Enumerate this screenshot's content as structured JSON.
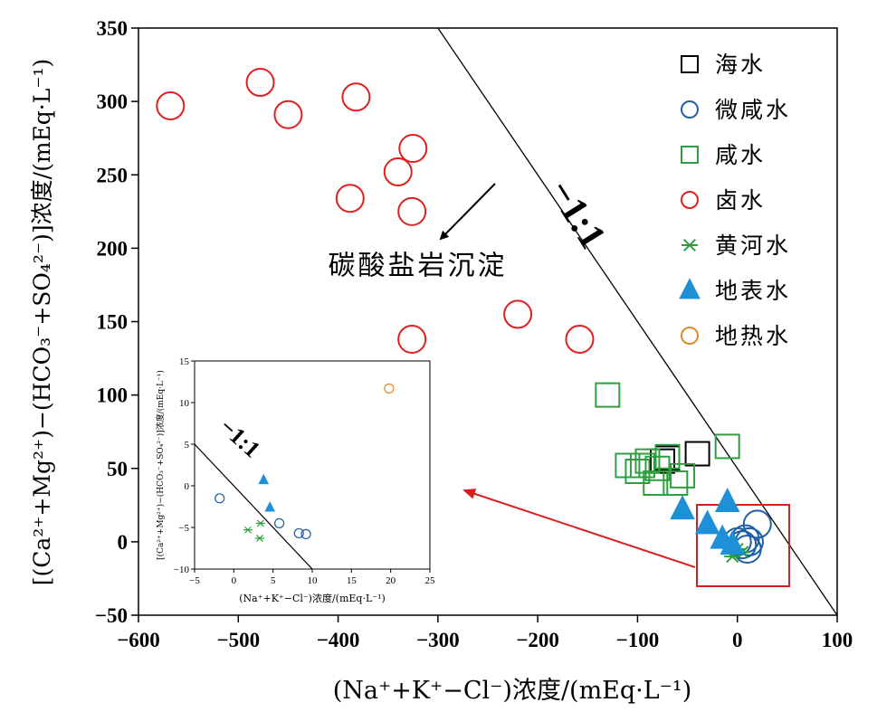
{
  "chart_data": [
    {
      "type": "scatter",
      "xlabel": "(Na⁺+K⁺−Cl⁻)浓度/(mEq·L⁻¹)",
      "ylabel": "[(Ca²⁺+Mg²⁺)−(HCO₃⁻+SO₄²⁻)]浓度/(mEq·L⁻¹)",
      "xlim": [
        -600,
        100
      ],
      "ylim": [
        -50,
        350
      ],
      "xticks": [
        -600,
        -500,
        -400,
        -300,
        -200,
        -100,
        0,
        100
      ],
      "yticks": [
        -50,
        0,
        50,
        100,
        150,
        200,
        250,
        300,
        350
      ],
      "xtick_labels": [
        "−600",
        "−500",
        "−400",
        "−300",
        "−200",
        "−100",
        "0",
        "100"
      ],
      "ytick_labels": [
        "−50",
        "0",
        "50",
        "100",
        "150",
        "200",
        "250",
        "300",
        "350"
      ],
      "grid": false,
      "legend_position": "top-right",
      "reference_line": {
        "label": "−1:1",
        "slope": -1,
        "intercept": 50
      },
      "annotations": [
        {
          "text": "碳酸盐岩沉淀",
          "x": -410,
          "y": 182
        },
        {
          "text": "−1:1",
          "x": -245,
          "y": 247
        }
      ],
      "series": [
        {
          "name": "海水",
          "marker": "square",
          "color": "#000000",
          "points": [
            [
              -75,
              55
            ],
            [
              -70,
              57
            ],
            [
              -40,
              60
            ]
          ]
        },
        {
          "name": "微咸水",
          "marker": "circle",
          "color": "#1f5fa6",
          "points": [
            [
              20,
              12
            ],
            [
              0,
              0
            ],
            [
              8,
              2
            ],
            [
              5,
              -2
            ],
            [
              12,
              0
            ],
            [
              10,
              -5
            ]
          ]
        },
        {
          "name": "咸水",
          "marker": "square",
          "color": "#2e9e3e",
          "points": [
            [
              -130,
              100
            ],
            [
              -10,
              65
            ],
            [
              -110,
              52
            ],
            [
              -95,
              52
            ],
            [
              -100,
              48
            ],
            [
              -90,
              55
            ],
            [
              -80,
              50
            ],
            [
              -70,
              58
            ],
            [
              -55,
              45
            ],
            [
              -82,
              40
            ],
            [
              -62,
              40
            ]
          ]
        },
        {
          "name": "卤水",
          "marker": "circle",
          "color": "#e02020",
          "points": [
            [
              -568,
              297
            ],
            [
              -478,
              313
            ],
            [
              -450,
              291
            ],
            [
              -382,
              303
            ],
            [
              -325,
              268
            ],
            [
              -340,
              252
            ],
            [
              -388,
              234
            ],
            [
              -326,
              225
            ],
            [
              -220,
              155
            ],
            [
              -158,
              138
            ],
            [
              -326,
              138
            ]
          ]
        },
        {
          "name": "黄河水",
          "marker": "asterisk",
          "color": "#2e9e3e",
          "points": [
            [
              -5,
              -10
            ],
            [
              0,
              -5
            ],
            [
              5,
              -7
            ]
          ]
        },
        {
          "name": "地表水",
          "marker": "triangle",
          "color": "#1e90d8",
          "points": [
            [
              -10,
              27
            ],
            [
              -55,
              22
            ],
            [
              -30,
              12
            ],
            [
              -15,
              2
            ],
            [
              -5,
              -2
            ]
          ]
        },
        {
          "name": "地热水",
          "marker": "circle",
          "color": "#e08a2e",
          "points": []
        }
      ]
    },
    {
      "type": "scatter",
      "xlabel": "(Na⁺+K⁺−Cl⁻)浓度/(mEq·L⁻¹)",
      "ylabel": "[(Ca²⁺+Mg²⁺)−(HCO₃⁻+SO₄²⁻)]浓度/(mEq·L⁻¹)",
      "xlim": [
        -5,
        25
      ],
      "ylim": [
        -10,
        15
      ],
      "xticks": [
        -5,
        0,
        5,
        10,
        15,
        20,
        25
      ],
      "yticks": [
        -10,
        -5,
        0,
        5,
        10,
        15
      ],
      "xtick_labels": [
        "−5",
        "0",
        "5",
        "10",
        "15",
        "20",
        "25"
      ],
      "ytick_labels": [
        "−10",
        "−5",
        "0",
        "5",
        "10",
        "15"
      ],
      "reference_line": {
        "label": "−1:1",
        "slope": -1,
        "intercept": 0
      },
      "annotations": [
        {
          "text": "−1:1",
          "x": -1.3,
          "y": 4.2
        }
      ],
      "series": [
        {
          "name": "微咸水",
          "marker": "circle",
          "color": "#1f5fa6",
          "points": [
            [
              -1.8,
              -1.5
            ],
            [
              5.8,
              -4.5
            ],
            [
              8.3,
              -5.7
            ],
            [
              9.2,
              -5.8
            ]
          ]
        },
        {
          "name": "黄河水",
          "marker": "asterisk",
          "color": "#2e9e3e",
          "points": [
            [
              1.8,
              -5.3
            ],
            [
              3.4,
              -4.5
            ],
            [
              3.3,
              -6.3
            ]
          ]
        },
        {
          "name": "地表水",
          "marker": "triangle",
          "color": "#1e90d8",
          "points": [
            [
              3.8,
              0.7
            ],
            [
              4.6,
              -2.6
            ]
          ]
        },
        {
          "name": "地热水",
          "marker": "circle",
          "color": "#e08a2e",
          "points": [
            [
              19.8,
              11.7
            ]
          ]
        }
      ]
    }
  ]
}
